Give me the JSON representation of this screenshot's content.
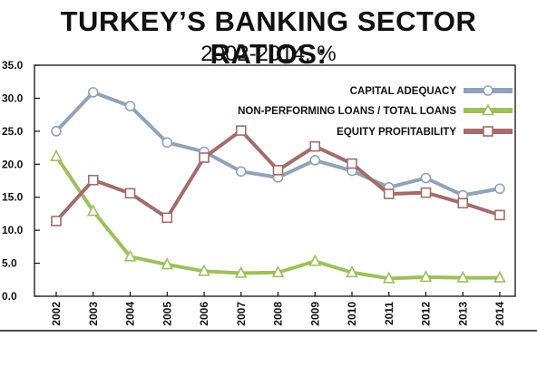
{
  "chart_data": {
    "type": "line",
    "title": "TURKEY’S BANKING SECTOR RATIOS:",
    "subtitle": "2002-2014, %",
    "xlabel": "",
    "ylabel": "",
    "x": [
      "2002",
      "2003",
      "2004",
      "2005",
      "2006",
      "2007",
      "2008",
      "2009",
      "2010",
      "2011",
      "2012",
      "2013",
      "2014"
    ],
    "ylim": [
      0,
      35
    ],
    "yticks": [
      "0.0",
      "5.0",
      "10.0",
      "15.0",
      "20.0",
      "25.0",
      "30.0",
      "35.0"
    ],
    "grid": false,
    "legend_position": "top-right",
    "series": [
      {
        "name": "CAPITAL ADEQUACY",
        "color": "#8fa4b8",
        "marker": "circle",
        "values": [
          25.0,
          30.9,
          28.8,
          23.3,
          21.9,
          18.9,
          18.0,
          20.6,
          19.0,
          16.5,
          17.9,
          15.3,
          16.3
        ]
      },
      {
        "name": "NON-PERFORMING LOANS / TOTAL LOANS",
        "color": "#9dc15a",
        "marker": "triangle",
        "values": [
          21.2,
          12.9,
          6.0,
          4.8,
          3.8,
          3.5,
          3.6,
          5.3,
          3.6,
          2.7,
          2.9,
          2.8,
          2.8
        ]
      },
      {
        "name": "EQUITY PROFITABILITY",
        "color": "#a56b6b",
        "marker": "square",
        "values": [
          11.4,
          17.6,
          15.6,
          11.9,
          21.0,
          25.1,
          19.1,
          22.7,
          20.1,
          15.5,
          15.7,
          14.1,
          12.3
        ]
      }
    ]
  }
}
